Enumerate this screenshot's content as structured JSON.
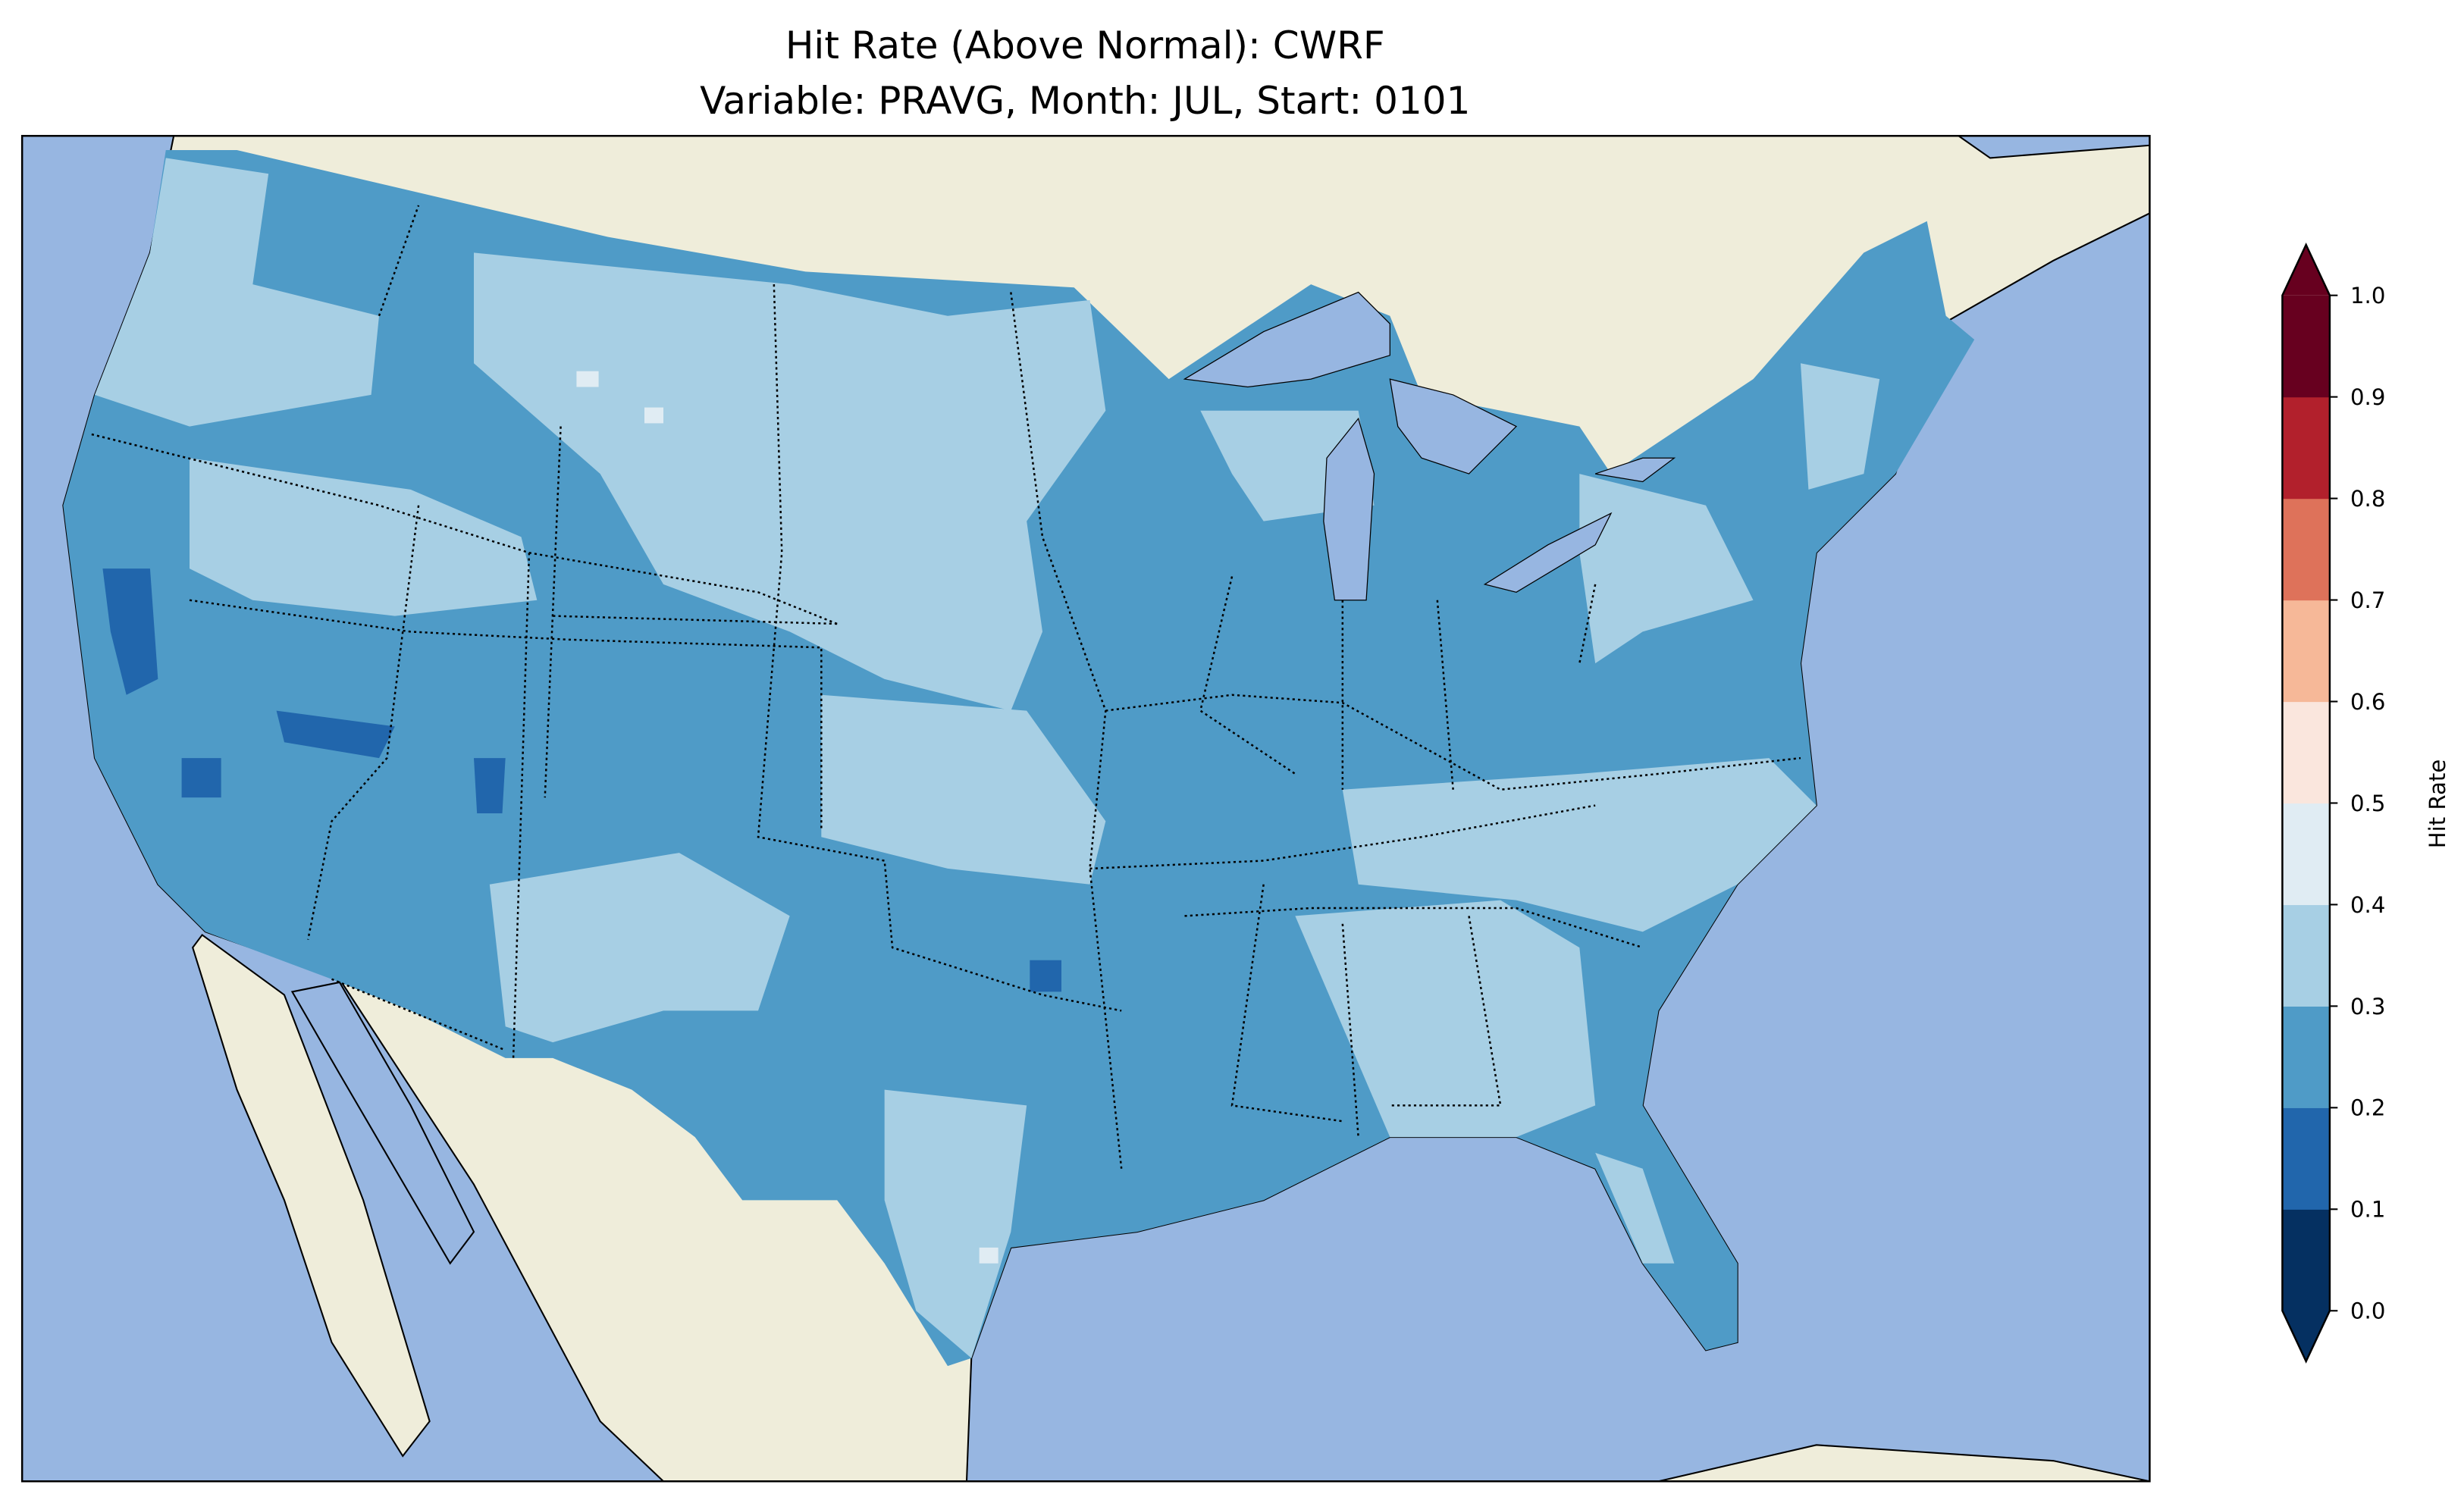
{
  "title": {
    "line1": "Hit Rate (Above Normal): CWRF",
    "line2": "Variable: PRAVG, Month: JUL, Start: 0101"
  },
  "colorbar": {
    "label": "Hit Rate",
    "ticks": [
      "0.0",
      "0.1",
      "0.2",
      "0.3",
      "0.4",
      "0.5",
      "0.6",
      "0.7",
      "0.8",
      "0.9",
      "1.0"
    ],
    "levels": [
      0.0,
      0.1,
      0.2,
      0.3,
      0.4,
      0.5,
      0.6,
      0.7,
      0.8,
      0.9,
      1.0
    ],
    "colors": [
      "#053061",
      "#2166ac",
      "#4f9bc7",
      "#a7cfe4",
      "#e0ecf3",
      "#fae6dd",
      "#f6b898",
      "#de725a",
      "#b2202c",
      "#67001f"
    ],
    "extend": "both"
  },
  "chart_data": {
    "type": "heatmap",
    "title": "Hit Rate (Above Normal): CWRF / Variable: PRAVG, Month: JUL, Start: 0101",
    "region": "Contiguous United States",
    "value_range": [
      0.0,
      1.0
    ],
    "dominant_bins": [
      "0.2-0.3",
      "0.3-0.4"
    ],
    "minor_bins": [
      "0.1-0.2",
      "0.4-0.5"
    ],
    "colorbar_label": "Hit Rate"
  },
  "colors": {
    "ocean": "#97b6e1",
    "land": "#efedda",
    "lakes": "#97b6e1"
  }
}
